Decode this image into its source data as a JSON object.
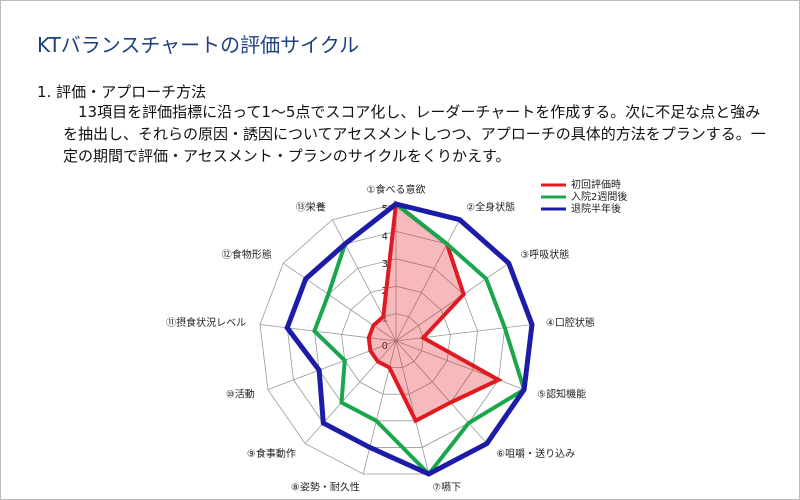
{
  "title": "KTバランスチャートの評価サイクル",
  "heading": "1. 評価・アプローチ方法",
  "body": "13項目を評価指標に沿って1～5点でスコア化し、レーダーチャートを作成する。次に不足な点と強みを抽出し、それらの原因・誘因についてアセスメントしつつ、アプローチの具体的方法をプランする。一定の期間で評価・アセスメント・プランのサイクルをくりかえす。",
  "chart_data": {
    "type": "radar",
    "categories": [
      "①食べる意欲",
      "②全身状態",
      "③呼吸状態",
      "④口腔状態",
      "⑤認知機能",
      "⑥咀嚼・送り込み",
      "⑦嚥下",
      "⑧姿勢・耐久性",
      "⑨食事動作",
      "⑩活動",
      "⑪摂食状況レベル",
      "⑫食物形態",
      "⑬栄養"
    ],
    "series": [
      {
        "name": "初回評価時",
        "color": "#e01a22",
        "fill": true,
        "values": [
          5,
          4,
          3,
          1,
          4,
          3,
          3,
          1,
          1,
          1,
          1,
          1,
          1
        ]
      },
      {
        "name": "入院2週間後",
        "color": "#1aa64a",
        "values": [
          5,
          4,
          4,
          4,
          5,
          4,
          5,
          3,
          3,
          2,
          3,
          3,
          4
        ]
      },
      {
        "name": "退院半年後",
        "color": "#1c1ca8",
        "values": [
          5,
          5,
          5,
          5,
          5,
          5,
          5,
          4,
          4,
          3,
          4,
          4,
          4
        ]
      }
    ],
    "ylim": [
      0,
      5
    ],
    "yticks": [
      0,
      1,
      2,
      3,
      4,
      5
    ],
    "grid": true
  }
}
